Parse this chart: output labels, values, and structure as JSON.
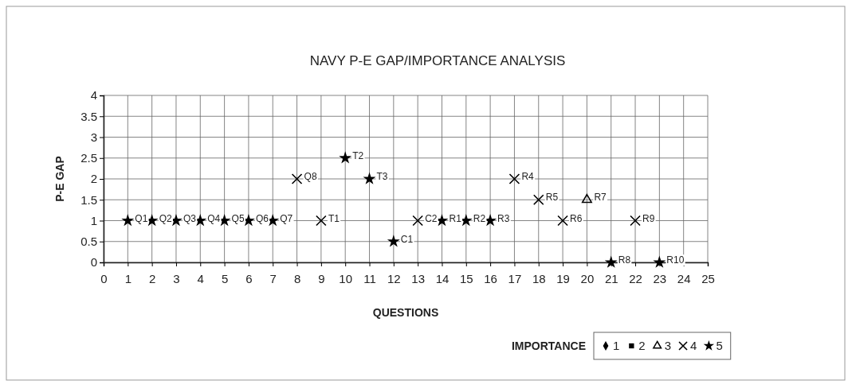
{
  "chart_data": {
    "type": "scatter",
    "title": "NAVY P-E GAP/IMPORTANCE ANALYSIS",
    "xlabel": "QUESTIONS",
    "ylabel": "P-E GAP",
    "legend_title": "IMPORTANCE",
    "xlim": [
      0,
      25
    ],
    "xticks": [
      0,
      1,
      2,
      3,
      4,
      5,
      6,
      7,
      8,
      9,
      10,
      11,
      12,
      13,
      14,
      15,
      16,
      17,
      18,
      19,
      20,
      21,
      22,
      23,
      24,
      25
    ],
    "ylim": [
      0,
      4
    ],
    "yticks": [
      0,
      0.5,
      1,
      1.5,
      2,
      2.5,
      3,
      3.5,
      4
    ],
    "grid": true,
    "legend": "bottom",
    "series": [
      {
        "name": "1",
        "color": "#000000",
        "marker": "diamond"
      },
      {
        "name": "2",
        "color": "#000000",
        "marker": "square"
      },
      {
        "name": "3",
        "color": "#000000",
        "marker": "triangle",
        "x": [
          20
        ],
        "values": [
          1.5
        ]
      },
      {
        "name": "4",
        "color": "#000000",
        "marker": "cross",
        "x": [
          8,
          9,
          13,
          17,
          18,
          19,
          22
        ],
        "values": [
          2,
          1,
          1,
          2,
          1.5,
          1,
          1
        ]
      },
      {
        "name": "5",
        "color": "#000000",
        "marker": "star",
        "x": [
          1,
          2,
          3,
          4,
          5,
          6,
          7,
          10,
          11,
          12,
          14,
          15,
          16,
          21,
          23
        ],
        "values": [
          1,
          1,
          1,
          1,
          1,
          1,
          1,
          2.5,
          2,
          0.5,
          1,
          1,
          1,
          0,
          0
        ]
      }
    ],
    "annotations": [
      {
        "text": "Q1",
        "x": 1,
        "y": 1
      },
      {
        "text": "Q2",
        "x": 2,
        "y": 1
      },
      {
        "text": "Q3",
        "x": 3,
        "y": 1
      },
      {
        "text": "Q4",
        "x": 4,
        "y": 1
      },
      {
        "text": "Q5",
        "x": 5,
        "y": 1
      },
      {
        "text": "Q6",
        "x": 6,
        "y": 1
      },
      {
        "text": "Q7",
        "x": 7,
        "y": 1
      },
      {
        "text": "Q8",
        "x": 8,
        "y": 2
      },
      {
        "text": "T1",
        "x": 9,
        "y": 1
      },
      {
        "text": "T2",
        "x": 10,
        "y": 2.5
      },
      {
        "text": "T3",
        "x": 11,
        "y": 2
      },
      {
        "text": "C1",
        "x": 12,
        "y": 0.5
      },
      {
        "text": "C2",
        "x": 13,
        "y": 1
      },
      {
        "text": "R1",
        "x": 14,
        "y": 1
      },
      {
        "text": "R2",
        "x": 15,
        "y": 1
      },
      {
        "text": "R3",
        "x": 16,
        "y": 1
      },
      {
        "text": "R4",
        "x": 17,
        "y": 2
      },
      {
        "text": "R5",
        "x": 18,
        "y": 1.5
      },
      {
        "text": "R6",
        "x": 19,
        "y": 1
      },
      {
        "text": "R7",
        "x": 20,
        "y": 1.5
      },
      {
        "text": "R8",
        "x": 21,
        "y": 0
      },
      {
        "text": "R9",
        "x": 22,
        "y": 1
      },
      {
        "text": "R10",
        "x": 23,
        "y": 0
      }
    ]
  }
}
